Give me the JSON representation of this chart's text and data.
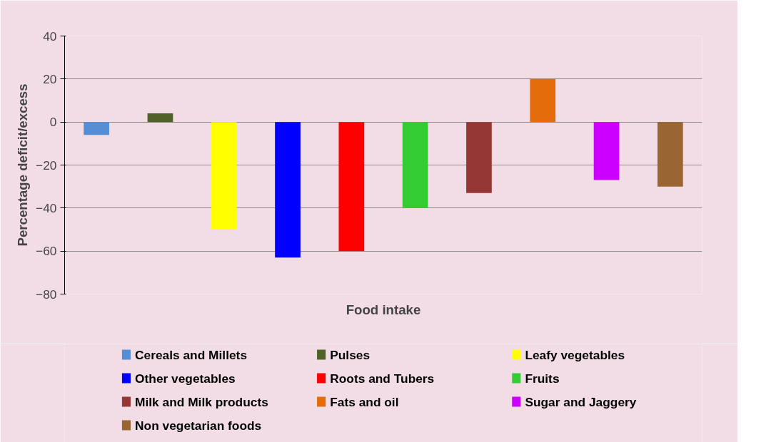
{
  "chart_data": {
    "type": "bar",
    "xlabel": "Food intake",
    "ylabel": "Percentage deficit/excess",
    "categories": [
      null,
      null,
      null,
      null,
      null,
      null,
      null,
      null,
      null,
      null
    ],
    "series": [
      {
        "name": "Cereals and Millets",
        "color": "#558ed5",
        "values": [
          -6,
          null,
          null,
          null,
          null,
          null,
          null,
          null,
          null,
          null
        ]
      },
      {
        "name": "Pulses",
        "color": "#4f6228",
        "values": [
          null,
          4,
          null,
          null,
          null,
          null,
          null,
          null,
          null,
          null
        ]
      },
      {
        "name": "Leafy vegetables",
        "color": "#ffff00",
        "values": [
          null,
          null,
          -50,
          null,
          null,
          null,
          null,
          null,
          null,
          null
        ]
      },
      {
        "name": "Other vegetables",
        "color": "#0000ff",
        "values": [
          null,
          null,
          null,
          -63,
          null,
          null,
          null,
          null,
          null,
          null
        ]
      },
      {
        "name": "Roots and Tubers",
        "color": "#ff0000",
        "values": [
          null,
          null,
          null,
          null,
          -60,
          null,
          null,
          null,
          null,
          null
        ]
      },
      {
        "name": "Fruits",
        "color": "#33cc33",
        "values": [
          null,
          null,
          null,
          null,
          null,
          -40,
          null,
          null,
          null,
          null
        ]
      },
      {
        "name": "Milk and Milk products",
        "color": "#953735",
        "values": [
          null,
          null,
          null,
          null,
          null,
          null,
          -33,
          null,
          null,
          null
        ]
      },
      {
        "name": "Fats and oil",
        "color": "#e46c0a",
        "values": [
          null,
          null,
          null,
          null,
          null,
          null,
          null,
          20,
          null,
          null
        ]
      },
      {
        "name": "Sugar and Jaggery",
        "color": "#cc00ff",
        "values": [
          null,
          null,
          null,
          null,
          null,
          null,
          null,
          null,
          -27,
          null
        ]
      },
      {
        "name": "Non vegetarian foods",
        "color": "#996633",
        "values": [
          null,
          null,
          null,
          null,
          null,
          null,
          null,
          null,
          null,
          -30
        ]
      }
    ],
    "ylim": [
      -80,
      40
    ],
    "yticks": [
      -80,
      -60,
      -40,
      -20,
      0,
      20,
      40
    ],
    "grid": "y",
    "legend": "bottom",
    "tick_labels": "y"
  }
}
